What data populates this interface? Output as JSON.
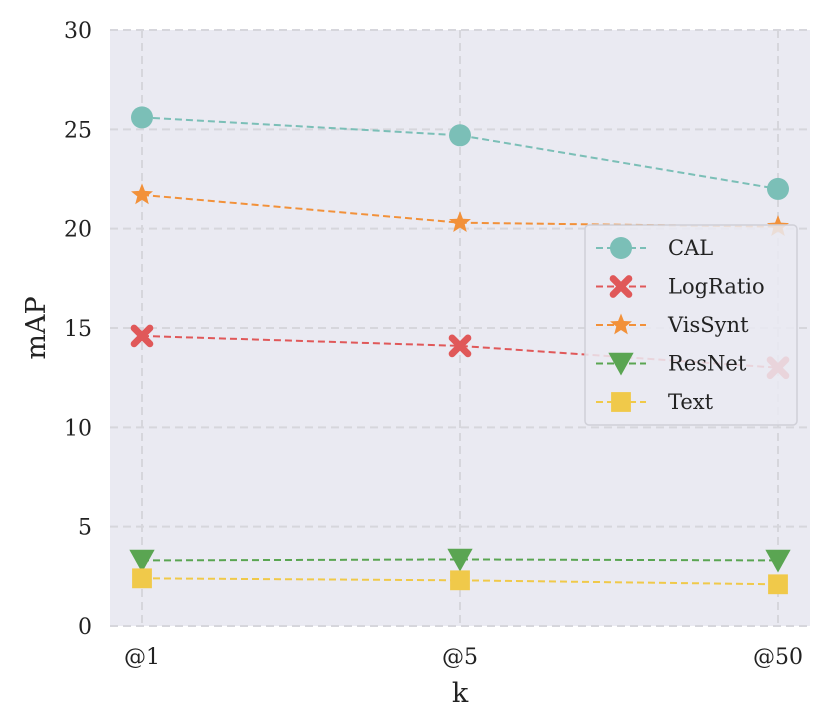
{
  "chart_data": {
    "type": "line",
    "title": "",
    "xlabel": "k",
    "ylabel": "mAP",
    "categories": [
      "@1",
      "@5",
      "@50"
    ],
    "ylim": [
      0,
      30
    ],
    "yticks": [
      0,
      5,
      10,
      15,
      20,
      25,
      30
    ],
    "grid": true,
    "legend_position": "center-right",
    "series": [
      {
        "name": "CAL",
        "values": [
          25.6,
          24.7,
          22.0
        ],
        "color": "#7bbfb7",
        "marker": "circle"
      },
      {
        "name": "LogRatio",
        "values": [
          14.6,
          14.1,
          13.0
        ],
        "color": "#e05859",
        "marker": "x"
      },
      {
        "name": "VisSynt",
        "values": [
          21.7,
          20.3,
          20.1
        ],
        "color": "#f2913a",
        "marker": "star"
      },
      {
        "name": "ResNet",
        "values": [
          3.3,
          3.35,
          3.3
        ],
        "color": "#5aa552",
        "marker": "triangle-down"
      },
      {
        "name": "Text",
        "values": [
          2.4,
          2.3,
          2.1
        ],
        "color": "#f0c94a",
        "marker": "square"
      }
    ],
    "background_color": "#eaeaf2"
  }
}
